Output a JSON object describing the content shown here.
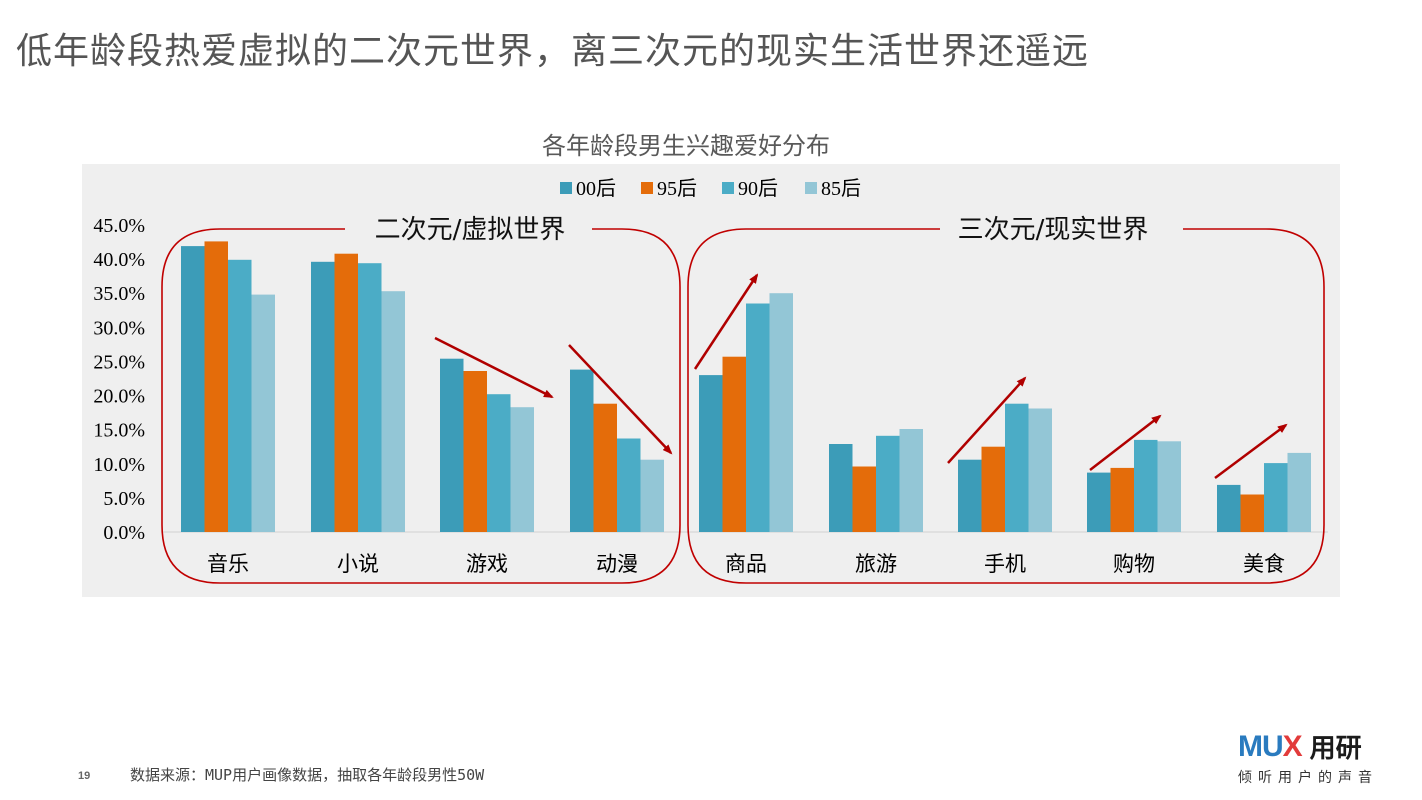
{
  "slide": {
    "title": "低年龄段热爱虚拟的二次元世界，离三次元的现实生活世界还遥远",
    "page_number": "19",
    "footnote": "数据来源：MUP用户画像数据，抽取各年龄段男性50W"
  },
  "logo": {
    "brand_left": "MU",
    "brand_x": "X",
    "brand_cn": "用研",
    "tagline": "倾听用户的声音"
  },
  "chart_data": {
    "type": "bar",
    "title": "各年龄段男生兴趣爱好分布",
    "categories": [
      "音乐",
      "小说",
      "游戏",
      "动漫",
      "商品",
      "旅游",
      "手机",
      "购物",
      "美食"
    ],
    "series": [
      {
        "name": "00后",
        "color": "#3c9cb8",
        "values": [
          41.9,
          39.6,
          25.4,
          23.8,
          23.0,
          12.9,
          10.6,
          8.7,
          6.9
        ]
      },
      {
        "name": "95后",
        "color": "#e46c0a",
        "values": [
          42.6,
          40.8,
          23.6,
          18.8,
          25.7,
          9.6,
          12.5,
          9.4,
          5.5
        ]
      },
      {
        "name": "90后",
        "color": "#4bacc6",
        "values": [
          39.9,
          39.4,
          20.2,
          13.7,
          33.5,
          14.1,
          18.8,
          13.5,
          10.1
        ]
      },
      {
        "name": "85后",
        "color": "#93c6d6",
        "values": [
          34.8,
          35.3,
          18.3,
          10.6,
          35.0,
          15.1,
          18.1,
          13.3,
          11.6
        ]
      }
    ],
    "ylim": [
      0,
      45
    ],
    "ytick_labels": [
      "0.0%",
      "5.0%",
      "10.0%",
      "15.0%",
      "20.0%",
      "25.0%",
      "30.0%",
      "35.0%",
      "40.0%",
      "45.0%"
    ],
    "grid": false,
    "legend_position": "top",
    "groups": [
      {
        "label": "二次元/虚拟世界",
        "categories": [
          "音乐",
          "小说",
          "游戏",
          "动漫"
        ]
      },
      {
        "label": "三次元/现实世界",
        "categories": [
          "商品",
          "旅游",
          "手机",
          "购物",
          "美食"
        ]
      }
    ],
    "annotations": {
      "arrow_color": "#b00000",
      "trend_arrows": [
        {
          "category": "游戏",
          "direction": "down"
        },
        {
          "category": "动漫",
          "direction": "down"
        },
        {
          "category": "商品",
          "direction": "up"
        },
        {
          "category": "手机",
          "direction": "up"
        },
        {
          "category": "购物",
          "direction": "up"
        },
        {
          "category": "美食",
          "direction": "up"
        }
      ]
    },
    "colors": {
      "plot_background": "#efefef",
      "group_frame": "#c00000",
      "axis_text": "#000000"
    }
  }
}
